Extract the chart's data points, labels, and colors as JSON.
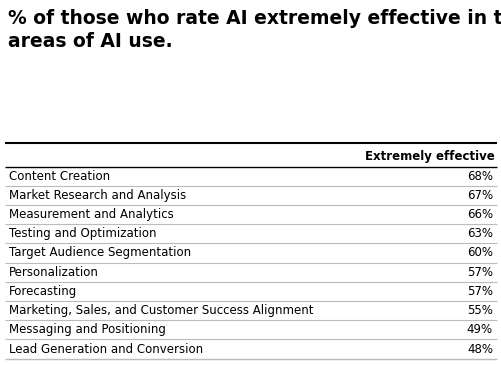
{
  "title": "% of those who rate AI extremely effective in the\nareas of AI use.",
  "column_header": "Extremely effective",
  "rows": [
    [
      "Content Creation",
      "68%"
    ],
    [
      "Market Research and Analysis",
      "67%"
    ],
    [
      "Measurement and Analytics",
      "66%"
    ],
    [
      "Testing and Optimization",
      "63%"
    ],
    [
      "Target Audience Segmentation",
      "60%"
    ],
    [
      "Personalization",
      "57%"
    ],
    [
      "Forecasting",
      "57%"
    ],
    [
      "Marketing, Sales, and Customer Success Alignment",
      "55%"
    ],
    [
      "Messaging and Positioning",
      "49%"
    ],
    [
      "Lead Generation and Conversion",
      "48%"
    ]
  ],
  "background_color": "#ffffff",
  "title_color": "#000000",
  "title_fontsize": 13.5,
  "header_fontsize": 8.5,
  "row_fontsize": 8.5,
  "line_color": "#bbbbbb",
  "top_line_color": "#000000",
  "value_color": "#000000",
  "label_color": "#000000"
}
